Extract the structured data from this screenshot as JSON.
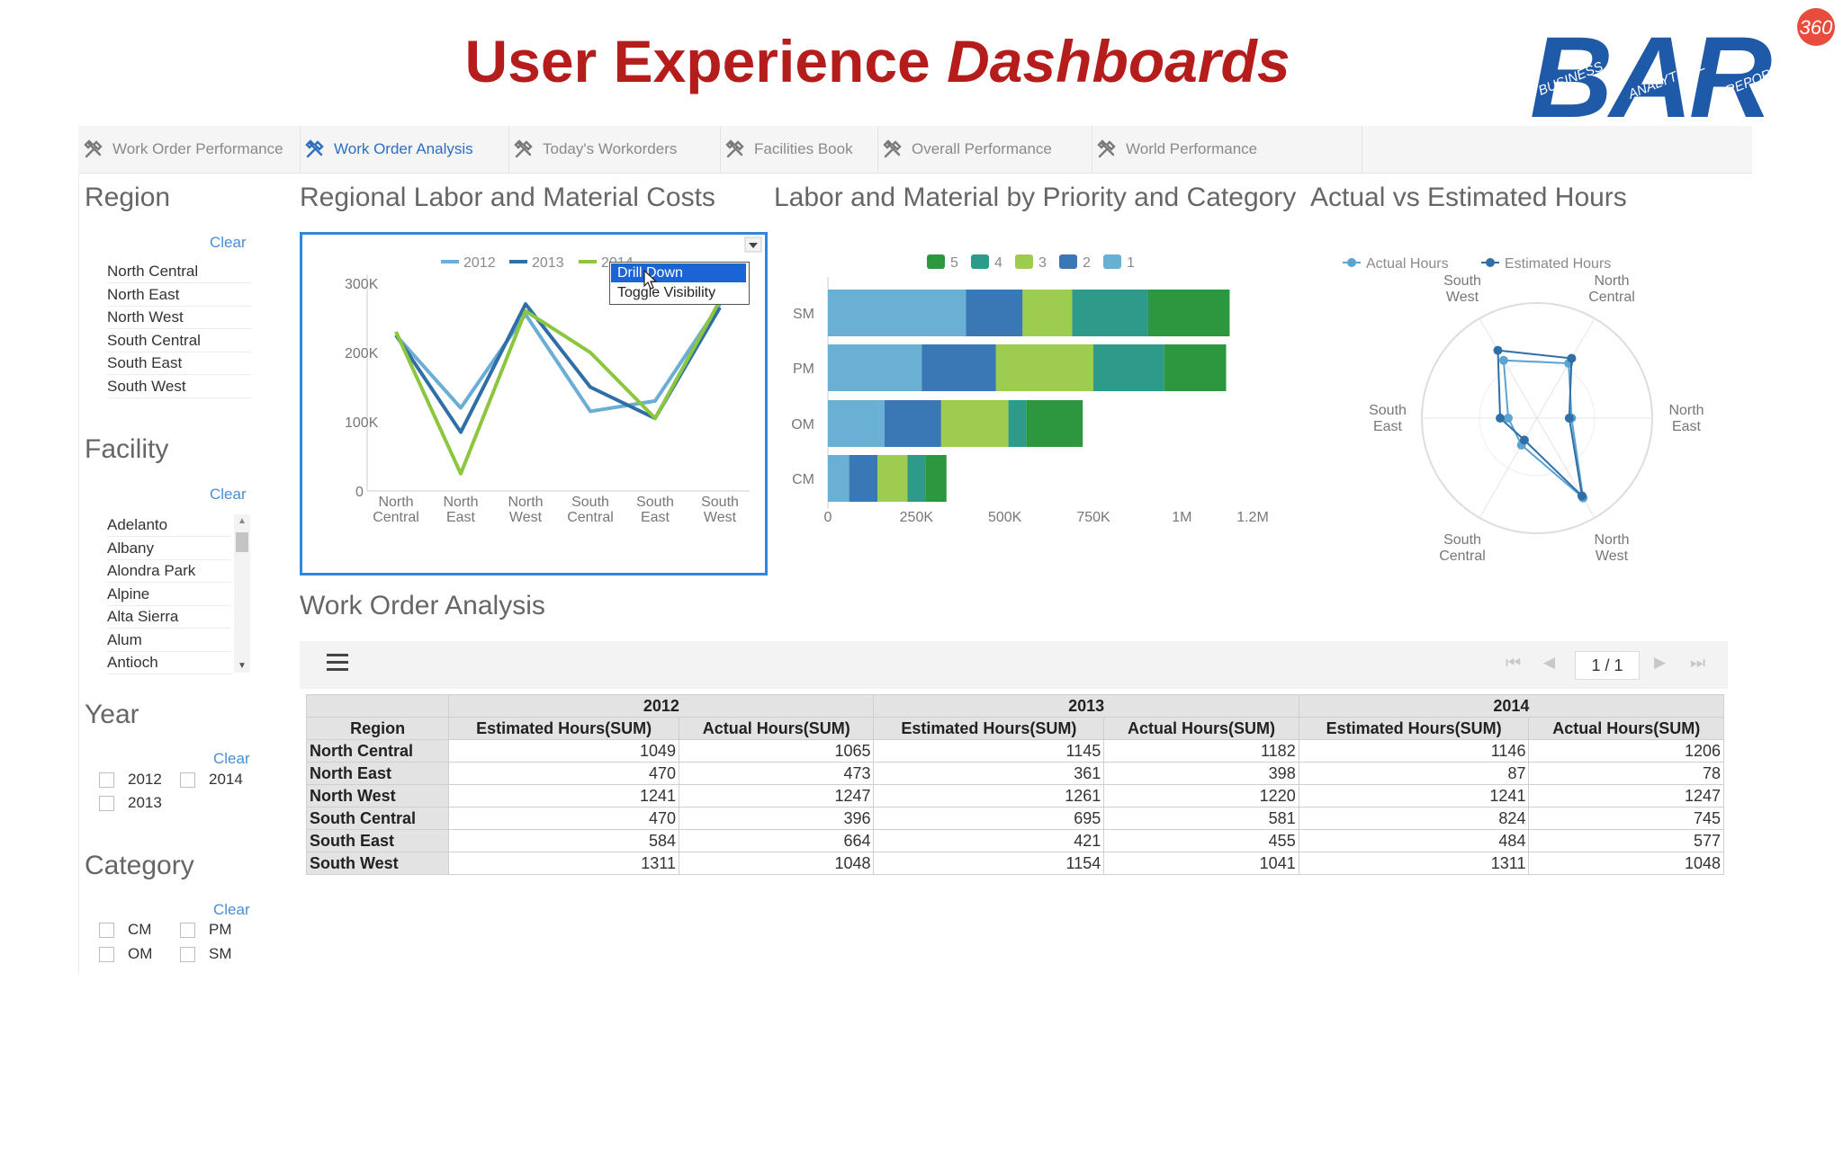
{
  "header": {
    "title_main": "User Experience",
    "title_italic": "Dashboards",
    "logo": {
      "letters": "BAR",
      "badge": "360",
      "words": [
        "BUSINESS",
        "ANALYTICAL",
        "REPORTING"
      ]
    }
  },
  "tabs": [
    {
      "label": "Work Order Performance",
      "active": false
    },
    {
      "label": "Work Order Analysis",
      "active": true
    },
    {
      "label": "Today's Workorders",
      "active": false
    },
    {
      "label": "Facilities Book",
      "active": false
    },
    {
      "label": "Overall Performance",
      "active": false
    },
    {
      "label": "World Performance",
      "active": false
    }
  ],
  "filters": {
    "region": {
      "title": "Region",
      "clear": "Clear",
      "items": [
        "North Central",
        "North East",
        "North West",
        "South Central",
        "South East",
        "South West"
      ]
    },
    "facility": {
      "title": "Facility",
      "clear": "Clear",
      "items": [
        "Adelanto",
        "Albany",
        "Alondra Park",
        "Alpine",
        "Alta Sierra",
        "Alum",
        "Antioch"
      ]
    },
    "year": {
      "title": "Year",
      "clear": "Clear",
      "options": [
        "2012",
        "2014",
        "2013"
      ]
    },
    "category": {
      "title": "Category",
      "clear": "Clear",
      "options": [
        "CM",
        "PM",
        "OM",
        "SM"
      ]
    }
  },
  "panels": {
    "regional_title": "Regional Labor and Material Costs",
    "priority_title": "Labor and Material by Priority and Category",
    "actual_title": "Actual vs Estimated Hours",
    "analysis_title": "Work Order Analysis"
  },
  "context_menu": {
    "items": [
      "Drill Down",
      "Toggle Visibility"
    ],
    "selected": 0
  },
  "pager": {
    "text": "1 / 1"
  },
  "colors": {
    "accent": "#2d6fbf",
    "title_red": "#b51c1c",
    "y2012": "#6aaed6",
    "y2013": "#2f6ea6",
    "y2014": "#8cc63f",
    "p5": "#2d9740",
    "p4": "#2e9b8a",
    "p3": "#9ccc50",
    "p2": "#3a78b5",
    "p1": "#6ab0d5"
  },
  "chart_data": [
    {
      "type": "line",
      "categories": [
        "North Central",
        "North East",
        "North West",
        "South Central",
        "South East",
        "South West"
      ],
      "ylim": [
        0,
        300000
      ],
      "yticks": [
        "0",
        "100K",
        "200K",
        "300K"
      ],
      "series": [
        {
          "name": "2012",
          "values": [
            225000,
            120000,
            255000,
            115000,
            130000,
            270000
          ]
        },
        {
          "name": "2013",
          "values": [
            225000,
            85000,
            270000,
            150000,
            105000,
            265000
          ]
        },
        {
          "name": "2014",
          "values": [
            230000,
            25000,
            260000,
            200000,
            105000,
            275000
          ]
        }
      ]
    },
    {
      "type": "bar",
      "orientation": "horizontal",
      "stacked": true,
      "categories": [
        "SM",
        "PM",
        "OM",
        "CM"
      ],
      "xlim": [
        0,
        1200000
      ],
      "xticks": [
        "0",
        "250K",
        "500K",
        "750K",
        "1M",
        "1.2M"
      ],
      "series": [
        {
          "name": "1",
          "values": [
            390000,
            265000,
            160000,
            60000
          ]
        },
        {
          "name": "2",
          "values": [
            160000,
            210000,
            160000,
            80000
          ]
        },
        {
          "name": "3",
          "values": [
            140000,
            275000,
            190000,
            85000
          ]
        },
        {
          "name": "4",
          "values": [
            215000,
            200000,
            50000,
            50000
          ]
        },
        {
          "name": "5",
          "values": [
            230000,
            175000,
            160000,
            60000
          ]
        }
      ],
      "legend_order": [
        "5",
        "4",
        "3",
        "2",
        "1"
      ]
    },
    {
      "type": "radar",
      "axes": [
        "North Central",
        "North East",
        "North West",
        "South Central",
        "South East",
        "South West"
      ],
      "rmax": 100,
      "series": [
        {
          "name": "Actual Hours",
          "values": [
            55,
            30,
            80,
            27,
            25,
            58
          ]
        },
        {
          "name": "Estimated Hours",
          "values": [
            60,
            28,
            78,
            22,
            32,
            68
          ]
        }
      ]
    }
  ],
  "table": {
    "years": [
      "2012",
      "2013",
      "2014"
    ],
    "region_header": "Region",
    "sub_headers": [
      "Estimated Hours(SUM)",
      "Actual Hours(SUM)"
    ],
    "rows": [
      {
        "region": "North Central",
        "values": [
          "1049",
          "1065",
          "1145",
          "1182",
          "1146",
          "1206"
        ]
      },
      {
        "region": "North East",
        "values": [
          "470",
          "473",
          "361",
          "398",
          "87",
          "78"
        ]
      },
      {
        "region": "North West",
        "values": [
          "1241",
          "1247",
          "1261",
          "1220",
          "1241",
          "1247"
        ]
      },
      {
        "region": "South Central",
        "values": [
          "470",
          "396",
          "695",
          "581",
          "824",
          "745"
        ]
      },
      {
        "region": "South East",
        "values": [
          "584",
          "664",
          "421",
          "455",
          "484",
          "577"
        ]
      },
      {
        "region": "South West",
        "values": [
          "1311",
          "1048",
          "1154",
          "1041",
          "1311",
          "1048"
        ]
      }
    ]
  }
}
